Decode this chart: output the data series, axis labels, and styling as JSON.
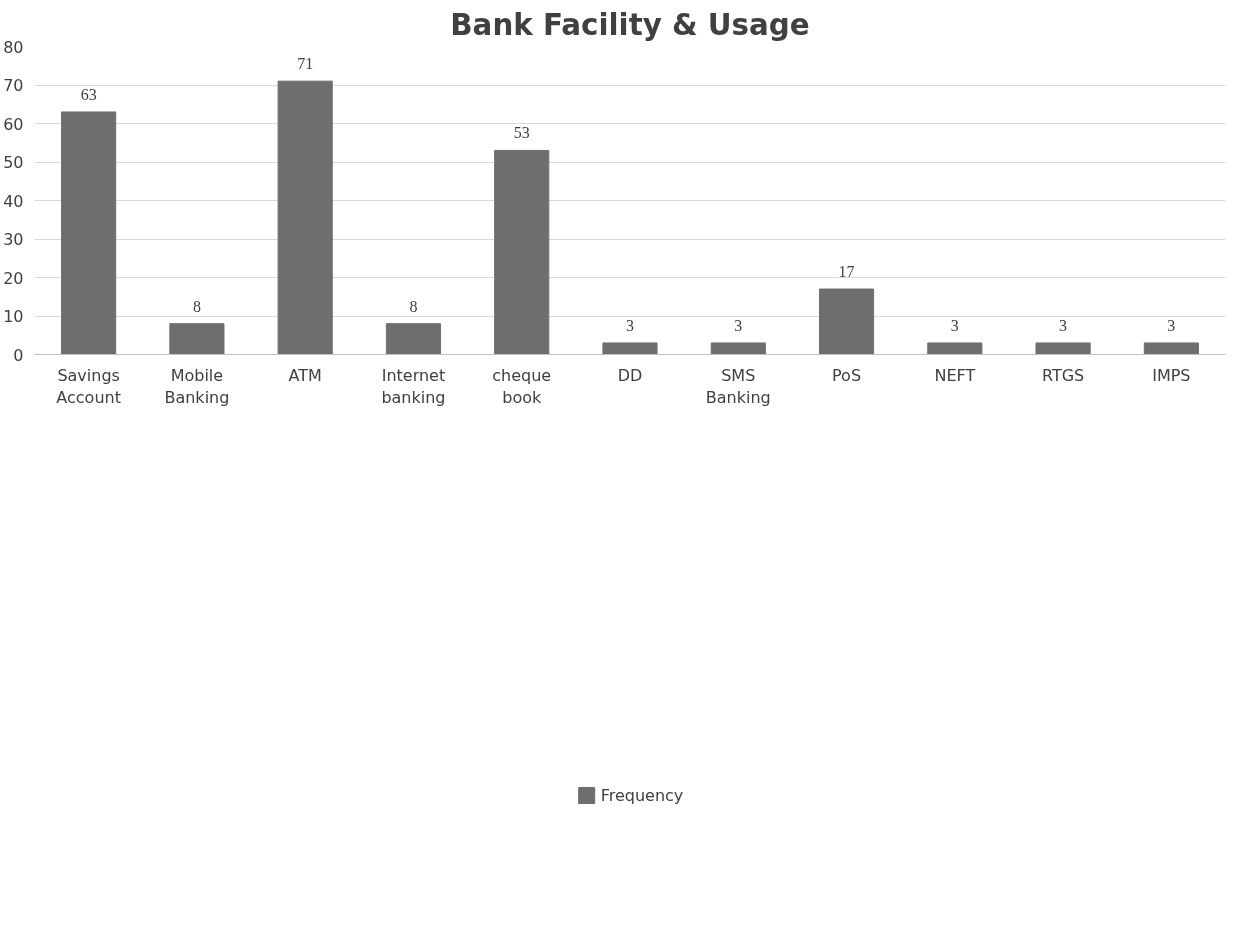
{
  "chart_data": {
    "type": "bar",
    "title": "Bank Facility & Usage",
    "categories": [
      "Savings Account",
      "Mobile Banking",
      "ATM",
      "Internet banking",
      "cheque book",
      "DD",
      "SMS Banking",
      "PoS",
      "NEFT",
      "RTGS",
      "IMPS"
    ],
    "series": [
      {
        "name": "Frequency",
        "color": "#6e6e6e",
        "values": [
          63,
          8,
          71,
          8,
          53,
          3,
          3,
          17,
          3,
          3,
          3
        ]
      }
    ],
    "ylim": [
      0,
      80
    ],
    "yticks": [
      0,
      10,
      20,
      30,
      40,
      50,
      60,
      70,
      80
    ],
    "grid": "y",
    "legend": "bottom",
    "data_labels": true
  }
}
